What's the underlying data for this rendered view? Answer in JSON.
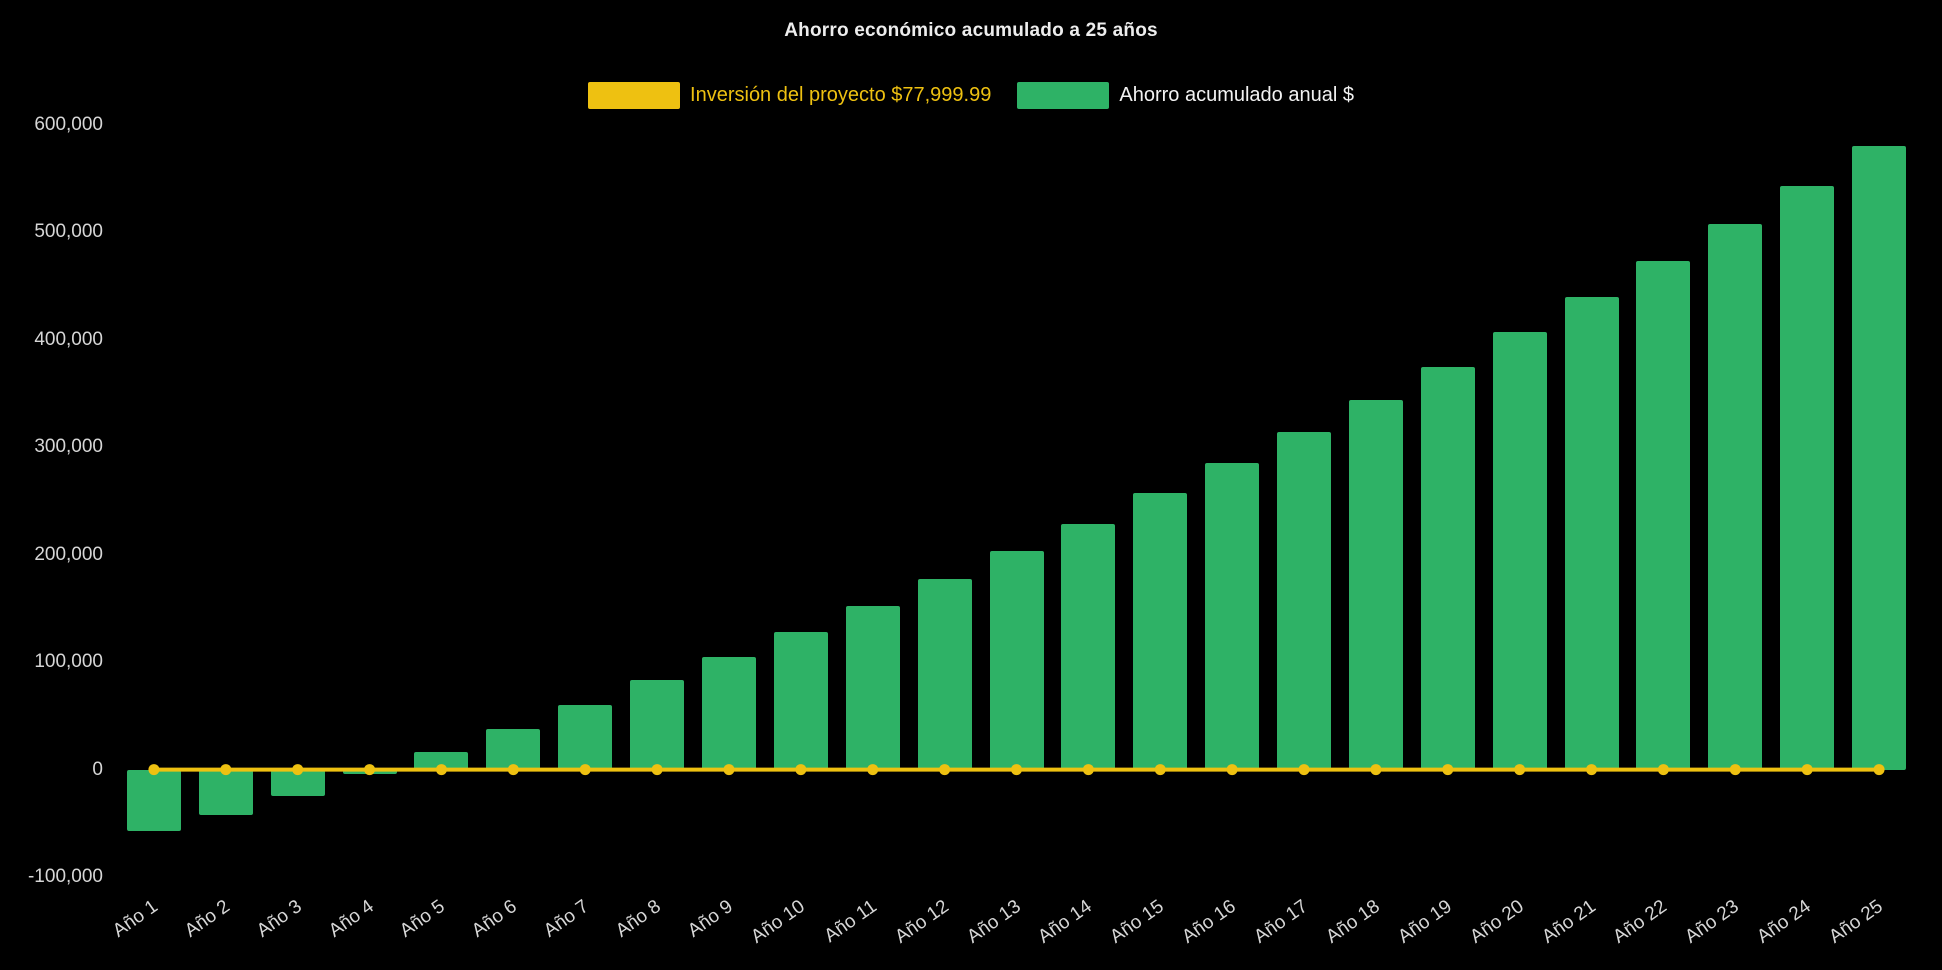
{
  "title": "Ahorro económico acumulado a 25 años",
  "legend": {
    "items": [
      {
        "label": "Inversión del proyecto $77,999.99",
        "swatch_color": "#eec111",
        "label_color": "#eec111"
      },
      {
        "label": "Ahorro acumulado anual $",
        "swatch_color": "#2eb266",
        "label_color": "#f2f2f2"
      }
    ]
  },
  "chart_data": {
    "type": "bar",
    "title": "Ahorro económico acumulado a 25 años",
    "categories": [
      "Año 1",
      "Año 2",
      "Año 3",
      "Año 4",
      "Año 5",
      "Año 6",
      "Año 7",
      "Año 8",
      "Año 9",
      "Año 10",
      "Año 11",
      "Año 12",
      "Año 13",
      "Año 14",
      "Año 15",
      "Año 16",
      "Año 17",
      "Año 18",
      "Año 19",
      "Año 20",
      "Año 21",
      "Año 22",
      "Año 23",
      "Año 24",
      "Año 25"
    ],
    "series": [
      {
        "name": "Ahorro acumulado anual $",
        "type": "bar",
        "color": "#2eb266",
        "values": [
          -57000,
          -42000,
          -25000,
          -4000,
          16000,
          38000,
          60000,
          83000,
          105000,
          128000,
          152000,
          177000,
          203000,
          229000,
          257000,
          285000,
          314000,
          344000,
          375000,
          407000,
          440000,
          473000,
          508000,
          543000,
          580000
        ]
      },
      {
        "name": "Inversión del proyecto $77,999.99",
        "type": "line",
        "color": "#eec111",
        "values": [
          0,
          0,
          0,
          0,
          0,
          0,
          0,
          0,
          0,
          0,
          0,
          0,
          0,
          0,
          0,
          0,
          0,
          0,
          0,
          0,
          0,
          0,
          0,
          0,
          0
        ]
      }
    ],
    "xlabel": "",
    "ylabel": "",
    "ylim": [
      -100000,
      600000
    ],
    "ytick_step": 100000,
    "ytick_labels": [
      "-100,000",
      "0",
      "100,000",
      "200,000",
      "300,000",
      "400,000",
      "500,000",
      "600,000"
    ],
    "grid": false,
    "legend_position": "top",
    "background": "#000000"
  }
}
